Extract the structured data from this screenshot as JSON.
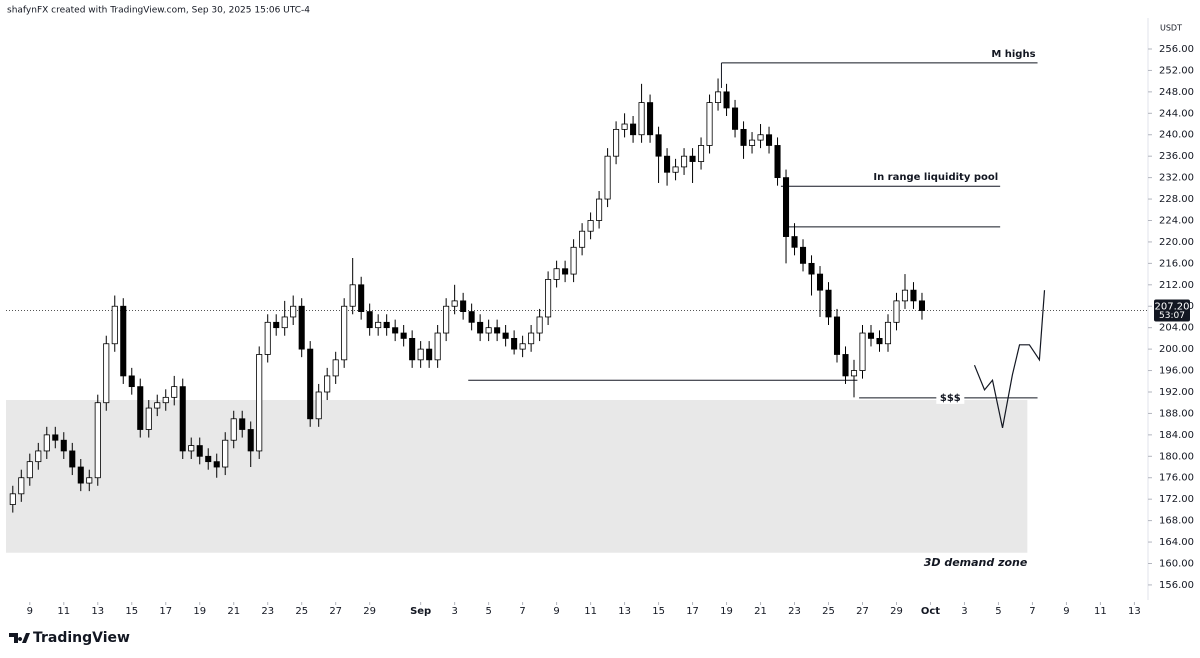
{
  "header": "shafynFX created with TradingView.com, Sep 30, 2025 15:06 UTC-4",
  "logo": "TradingView",
  "chart_data": {
    "type": "candlestick",
    "unit": "USDT",
    "xlim": [
      7.6,
      74.8
    ],
    "ylim": [
      153,
      261
    ],
    "xticks": [
      9,
      11,
      13,
      15,
      17,
      19,
      21,
      23,
      25,
      27,
      29,
      {
        "value": 32,
        "label": "Sep"
      },
      {
        "value": 34,
        "label": "3"
      },
      {
        "value": 36,
        "label": "5"
      },
      {
        "value": 38,
        "label": "7"
      },
      {
        "value": 40,
        "label": "9"
      },
      {
        "value": 42,
        "label": "11"
      },
      {
        "value": 44,
        "label": "13"
      },
      {
        "value": 46,
        "label": "15"
      },
      {
        "value": 48,
        "label": "17"
      },
      {
        "value": 50,
        "label": "19"
      },
      {
        "value": 52,
        "label": "21"
      },
      {
        "value": 54,
        "label": "23"
      },
      {
        "value": 56,
        "label": "25"
      },
      {
        "value": 58,
        "label": "27"
      },
      {
        "value": 60,
        "label": "29"
      },
      {
        "value": 62,
        "label": "Oct"
      },
      {
        "value": 64,
        "label": "3"
      },
      {
        "value": 66,
        "label": "5"
      },
      {
        "value": 68,
        "label": "7"
      },
      {
        "value": 70,
        "label": "9"
      },
      {
        "value": 72,
        "label": "11"
      },
      {
        "value": 74,
        "label": "13"
      }
    ],
    "yticks": [
      {
        "value": 256,
        "label": "256.00"
      },
      {
        "value": 252,
        "label": "252.00"
      },
      {
        "value": 248,
        "label": "248.00"
      },
      {
        "value": 244,
        "label": "244.00"
      },
      {
        "value": 240,
        "label": "240.00"
      },
      {
        "value": 236,
        "label": "236.00"
      },
      {
        "value": 232,
        "label": "232.00"
      },
      {
        "value": 228,
        "label": "228.00"
      },
      {
        "value": 224,
        "label": "224.00"
      },
      {
        "value": 220,
        "label": "220.00"
      },
      {
        "value": 216,
        "label": "216.00"
      },
      {
        "value": 212,
        "label": "212.00"
      },
      {
        "value": 208,
        "label": "208.00"
      },
      {
        "value": 204,
        "label": "204.00"
      },
      {
        "value": 200,
        "label": "200.00"
      },
      {
        "value": 196,
        "label": "196.00"
      },
      {
        "value": 192,
        "label": "192.00"
      },
      {
        "value": 188,
        "label": "188.00"
      },
      {
        "value": 184,
        "label": "184.00"
      },
      {
        "value": 180,
        "label": "180.00"
      },
      {
        "value": 176,
        "label": "176.00"
      },
      {
        "value": 172,
        "label": "172.00"
      },
      {
        "value": 168,
        "label": "168.00"
      },
      {
        "value": 164,
        "label": "164.00"
      },
      {
        "value": 160,
        "label": "160.00"
      },
      {
        "value": 156,
        "label": "156.00"
      }
    ],
    "up_color": "#ffffff",
    "down_color": "#000000",
    "x": [
      8,
      8.5,
      9,
      9.5,
      10,
      10.5,
      11,
      11.5,
      12,
      12.5,
      13,
      13.5,
      14,
      14.5,
      15,
      15.5,
      16,
      16.5,
      17,
      17.5,
      18,
      18.5,
      19,
      19.5,
      20,
      20.5,
      21,
      21.5,
      22,
      22.5,
      23,
      23.5,
      24,
      24.5,
      25,
      25.5,
      26,
      26.5,
      27,
      27.5,
      28,
      28.5,
      29,
      29.5,
      30,
      30.5,
      31,
      31.5,
      32,
      32.5,
      33,
      33.5,
      34,
      34.5,
      35,
      35.5,
      36,
      36.5,
      37,
      37.5,
      38,
      38.5,
      39,
      39.5,
      40,
      40.5,
      41,
      41.5,
      42,
      42.5,
      43,
      43.5,
      44,
      44.5,
      45,
      45.5,
      46,
      46.5,
      47,
      47.5,
      48,
      48.5,
      49,
      49.5,
      50,
      50.5,
      51,
      51.5,
      52,
      52.5,
      53,
      53.5,
      54,
      54.5,
      55,
      55.5,
      56,
      56.5,
      57,
      57.5,
      58,
      58.5,
      59,
      59.5,
      60,
      60.5,
      61,
      61.5
    ],
    "ohlc": [
      [
        171,
        174.5,
        169.5,
        173
      ],
      [
        173,
        177.5,
        171.5,
        176
      ],
      [
        176,
        180.5,
        174.5,
        179
      ],
      [
        179,
        182.5,
        177.5,
        181
      ],
      [
        181,
        185.5,
        179.5,
        184
      ],
      [
        184,
        185.5,
        181.5,
        183
      ],
      [
        183,
        184.5,
        179.5,
        181
      ],
      [
        181,
        182.5,
        176.5,
        178
      ],
      [
        178,
        179.5,
        173.5,
        175
      ],
      [
        175,
        177.5,
        173.5,
        176
      ],
      [
        176,
        191.5,
        174.5,
        190
      ],
      [
        190,
        202.5,
        188.5,
        201
      ],
      [
        201,
        210,
        199.5,
        208
      ],
      [
        208,
        209.5,
        193.5,
        195
      ],
      [
        195,
        196.5,
        191.5,
        193
      ],
      [
        193,
        194.5,
        183.5,
        185
      ],
      [
        185,
        190.5,
        183.5,
        189
      ],
      [
        189,
        191.5,
        187.5,
        190
      ],
      [
        190,
        192.5,
        188.5,
        191
      ],
      [
        191,
        195,
        189.5,
        193
      ],
      [
        193,
        194.5,
        179.5,
        181
      ],
      [
        181,
        183.5,
        179.5,
        182
      ],
      [
        182,
        183.5,
        178.5,
        180
      ],
      [
        180,
        181.5,
        177.5,
        179
      ],
      [
        179,
        180.5,
        176,
        178
      ],
      [
        178,
        184.5,
        176.5,
        183
      ],
      [
        183,
        188.5,
        181.5,
        187
      ],
      [
        187,
        188.5,
        183.5,
        185
      ],
      [
        185,
        186.5,
        178,
        181
      ],
      [
        181,
        200.5,
        179.5,
        199
      ],
      [
        199,
        206.5,
        197.5,
        205
      ],
      [
        205,
        206.5,
        202.5,
        204
      ],
      [
        204,
        209,
        202.5,
        206
      ],
      [
        206,
        210,
        204.5,
        208
      ],
      [
        208,
        209.5,
        198.5,
        200
      ],
      [
        200,
        201.5,
        185.5,
        187
      ],
      [
        187,
        193.5,
        185.5,
        192
      ],
      [
        192,
        196.5,
        190.5,
        195
      ],
      [
        195,
        199.5,
        193.5,
        198
      ],
      [
        198,
        209.5,
        196.5,
        208
      ],
      [
        208,
        217,
        206.5,
        212
      ],
      [
        212,
        213.5,
        205.5,
        207
      ],
      [
        207,
        208.5,
        202.5,
        204
      ],
      [
        204,
        206.5,
        202.5,
        205
      ],
      [
        205,
        206.5,
        202.5,
        204
      ],
      [
        204,
        205.5,
        201.5,
        203
      ],
      [
        203,
        204.5,
        200.5,
        202
      ],
      [
        202,
        203.5,
        196.5,
        198
      ],
      [
        198,
        201.5,
        196.5,
        200
      ],
      [
        200,
        201.5,
        196.5,
        198
      ],
      [
        198,
        204.5,
        196.5,
        203
      ],
      [
        203,
        209.5,
        201.5,
        208
      ],
      [
        208,
        212,
        206.5,
        209
      ],
      [
        209,
        210.5,
        205.5,
        207
      ],
      [
        207,
        208.5,
        203.5,
        205
      ],
      [
        205,
        206.5,
        201.5,
        203
      ],
      [
        203,
        205.5,
        201.5,
        204
      ],
      [
        204,
        205.5,
        201.5,
        203
      ],
      [
        203,
        204.5,
        200.5,
        202
      ],
      [
        202,
        203.5,
        199,
        200
      ],
      [
        200,
        202.5,
        198.5,
        201
      ],
      [
        201,
        204.5,
        199.5,
        203
      ],
      [
        203,
        207.5,
        201.5,
        206
      ],
      [
        206,
        214.5,
        204.5,
        213
      ],
      [
        213,
        216.5,
        211.5,
        215
      ],
      [
        215,
        216.5,
        212.5,
        214
      ],
      [
        214,
        220.5,
        212.5,
        219
      ],
      [
        219,
        223.5,
        217.5,
        222
      ],
      [
        222,
        225.5,
        220.5,
        224
      ],
      [
        224,
        229.5,
        222.5,
        228
      ],
      [
        228,
        237.5,
        226.5,
        236
      ],
      [
        236,
        242.5,
        234.5,
        241
      ],
      [
        241,
        244,
        239.5,
        242
      ],
      [
        242,
        243.5,
        238.5,
        240
      ],
      [
        240,
        249.5,
        238.5,
        246
      ],
      [
        246,
        247.5,
        238.5,
        240
      ],
      [
        240,
        241.5,
        231,
        236
      ],
      [
        236,
        237.5,
        230.5,
        233
      ],
      [
        233,
        235.5,
        231.5,
        234
      ],
      [
        234,
        237.5,
        232.5,
        236
      ],
      [
        236,
        237.5,
        231,
        235
      ],
      [
        235,
        239.5,
        233.5,
        238
      ],
      [
        238,
        247.5,
        236.5,
        246
      ],
      [
        246,
        250.5,
        244.5,
        248
      ],
      [
        248,
        249.5,
        243.5,
        245
      ],
      [
        245,
        246.5,
        239.5,
        241
      ],
      [
        241,
        242.5,
        235.5,
        238
      ],
      [
        238,
        240.5,
        236.5,
        239
      ],
      [
        239,
        242,
        237.5,
        240
      ],
      [
        240,
        241.5,
        236.5,
        238
      ],
      [
        238,
        239.5,
        230.5,
        232
      ],
      [
        232,
        233.5,
        216,
        221
      ],
      [
        221,
        223.5,
        217.5,
        219
      ],
      [
        219,
        220.5,
        214.5,
        216
      ],
      [
        216,
        217.5,
        210,
        214
      ],
      [
        214,
        215.5,
        206,
        211
      ],
      [
        211,
        212.5,
        204.5,
        206
      ],
      [
        206,
        207.5,
        197.5,
        199
      ],
      [
        199,
        200.5,
        193.5,
        195
      ],
      [
        195,
        198,
        191,
        196
      ],
      [
        196,
        204.5,
        194.5,
        203
      ],
      [
        203,
        204.5,
        200.5,
        202
      ],
      [
        202,
        203.5,
        199.5,
        201
      ],
      [
        201,
        206.5,
        199.5,
        205
      ],
      [
        205,
        210.5,
        203.5,
        209
      ],
      [
        209,
        214,
        207.5,
        211
      ],
      [
        211,
        212.5,
        207.5,
        209
      ],
      [
        209,
        210.5,
        205.5,
        207.2
      ]
    ],
    "last_price": {
      "value": 207.2,
      "label": "207.20"
    },
    "countdown": "53:07",
    "levels": [
      {
        "label": "M highs",
        "y": 253.4,
        "x": [
          49.7,
          68.3
        ]
      },
      {
        "label": "In range liquidity pool",
        "y": 230.4,
        "x": [
          53.2,
          66.1
        ]
      },
      {
        "y": 222.8,
        "x": [
          53.5,
          66.1
        ]
      },
      {
        "y": 194.2,
        "x": [
          34.8,
          57.7
        ]
      },
      {
        "label": "$$$",
        "y": 190.9,
        "x": [
          57.8,
          68.3
        ]
      }
    ],
    "zone": {
      "label": "3D demand zone",
      "y": [
        162,
        190.5
      ],
      "x": [
        7.6,
        67.7
      ]
    },
    "projection": {
      "x": [
        64.59,
        65.18,
        65.65,
        66.24,
        66.82,
        67.24,
        67.82,
        68.41,
        68.71
      ],
      "y": [
        197.0,
        192.4,
        194.2,
        185.3,
        195.2,
        200.8,
        200.8,
        198.0,
        211.0
      ]
    }
  }
}
